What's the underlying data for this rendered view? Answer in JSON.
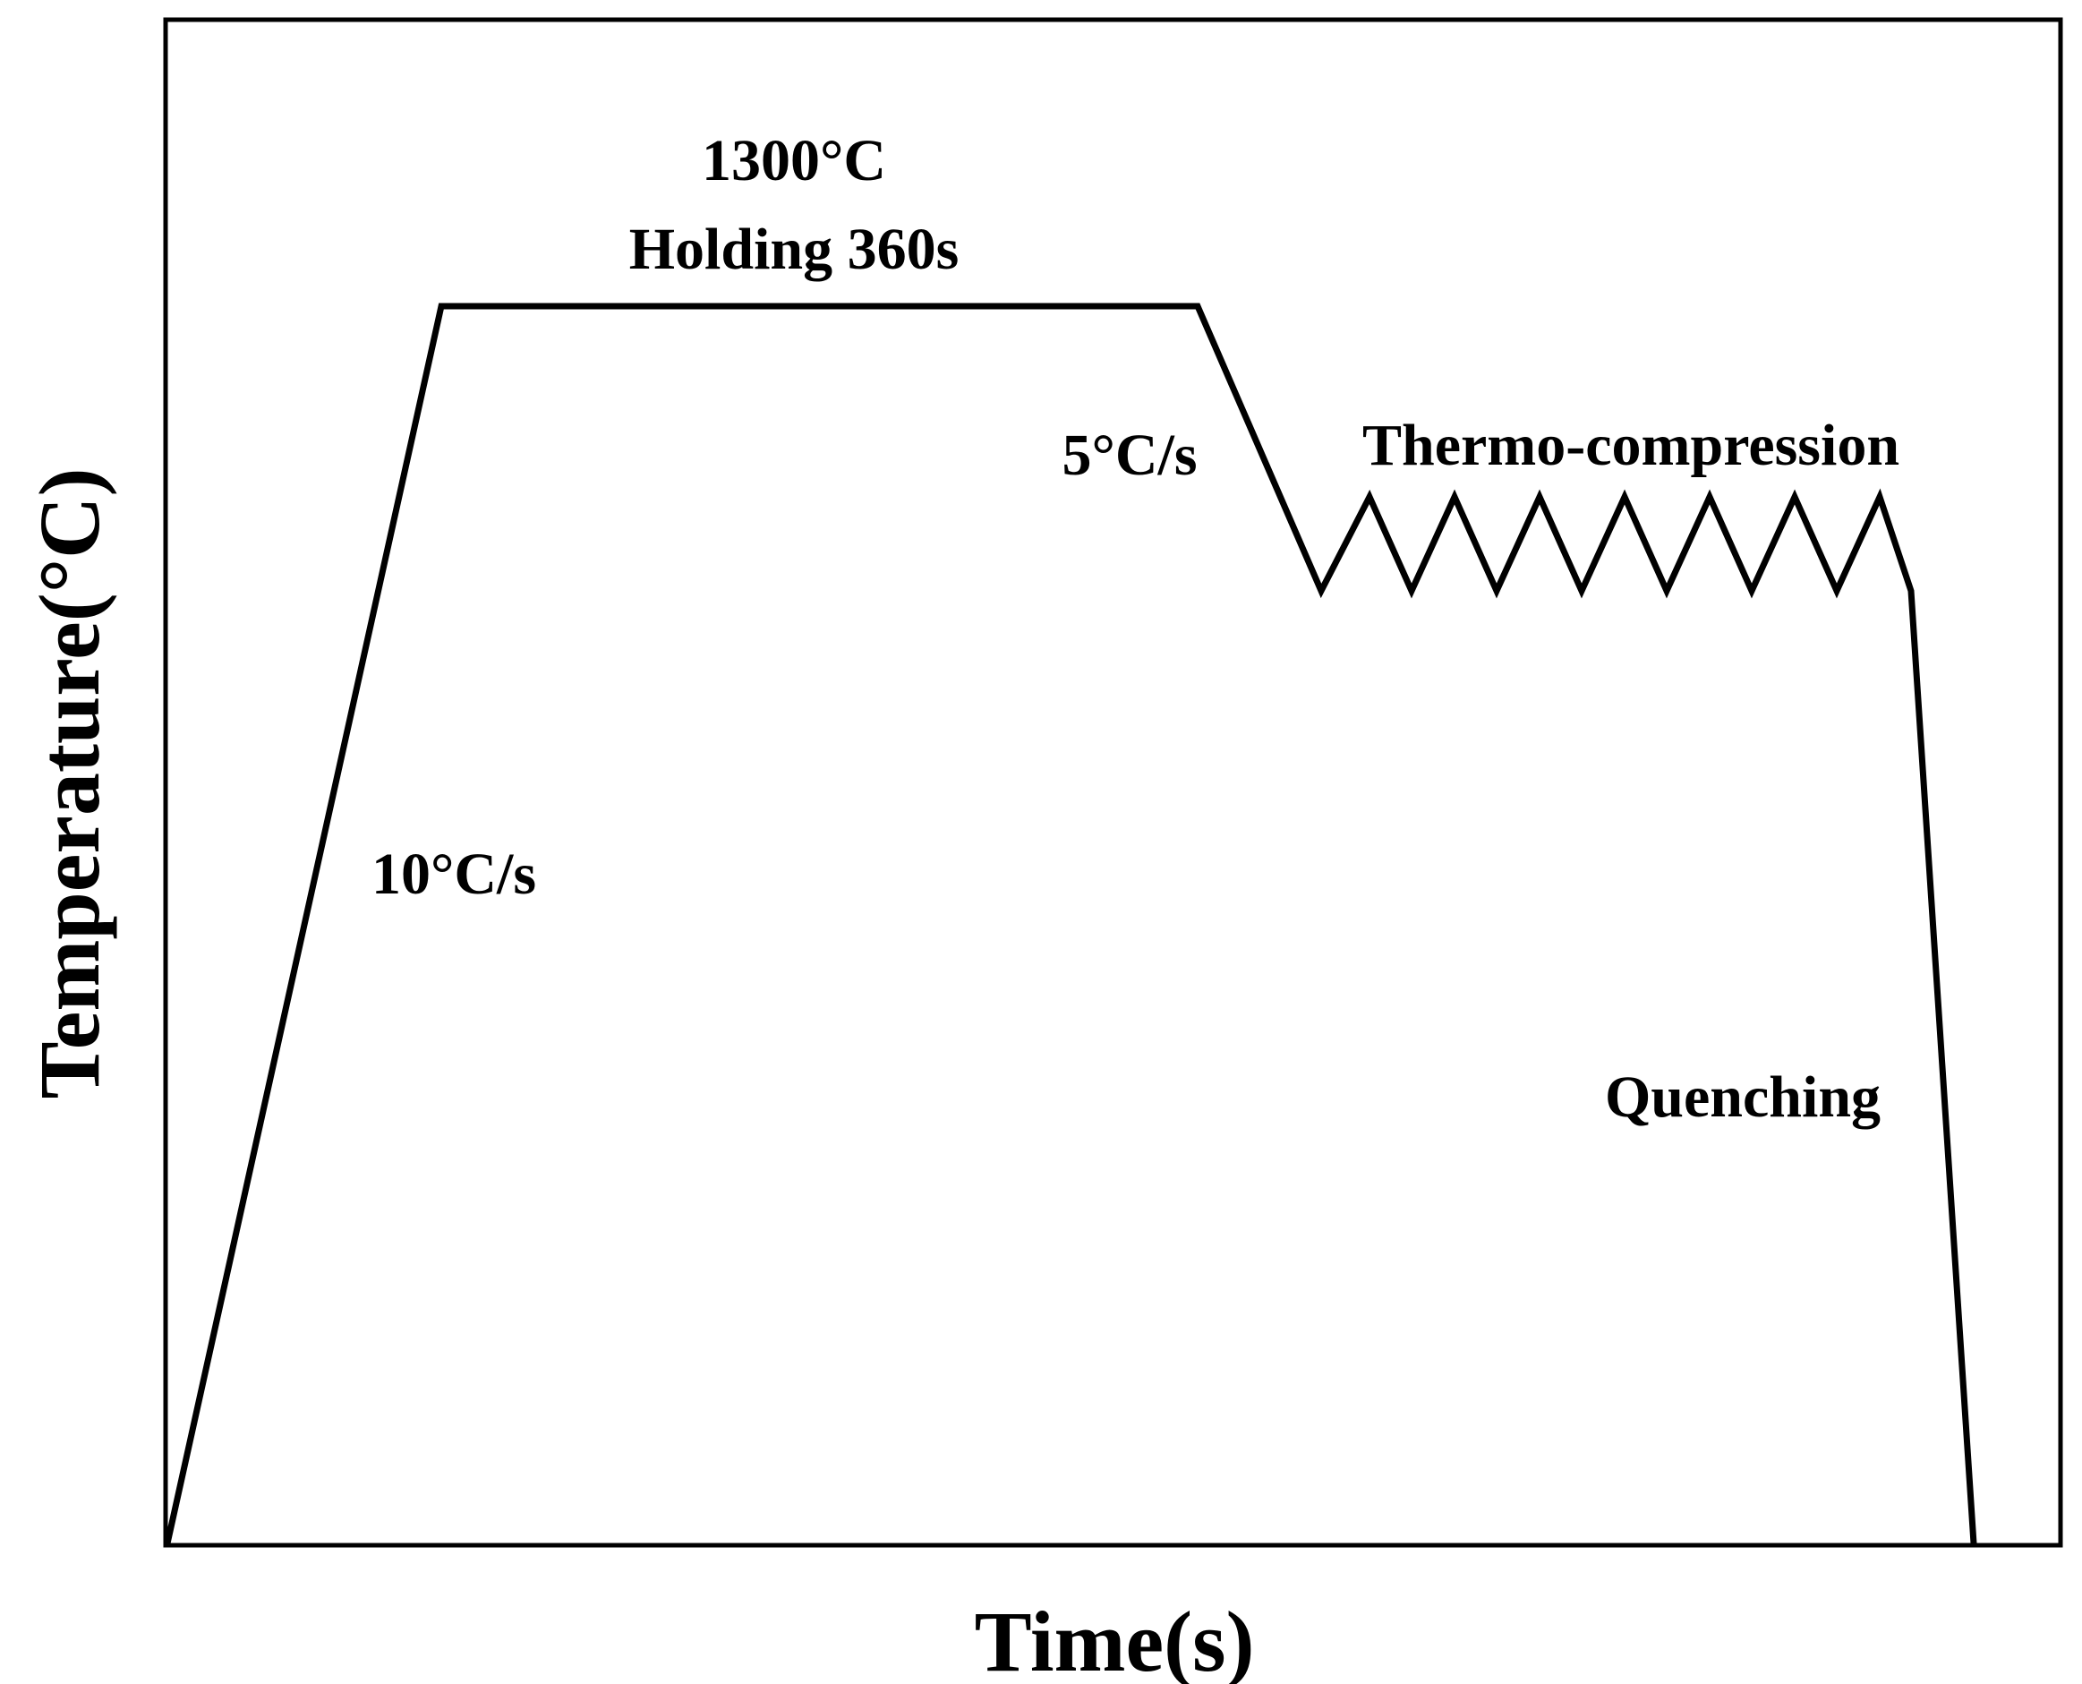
{
  "axes": {
    "x_label": "Time(s)",
    "y_label": "Temperature(°C)"
  },
  "annotations": {
    "holding_temp": "1300°C",
    "holding_time": "Holding 360s",
    "heating_rate": "10°C/s",
    "cooling_rate": "5°C/s",
    "deformation": "Thermo-compression",
    "quench": "Quenching"
  },
  "process": {
    "deformation_cycles": 7
  },
  "colors": {
    "line": "#000000",
    "background": "#ffffff"
  }
}
